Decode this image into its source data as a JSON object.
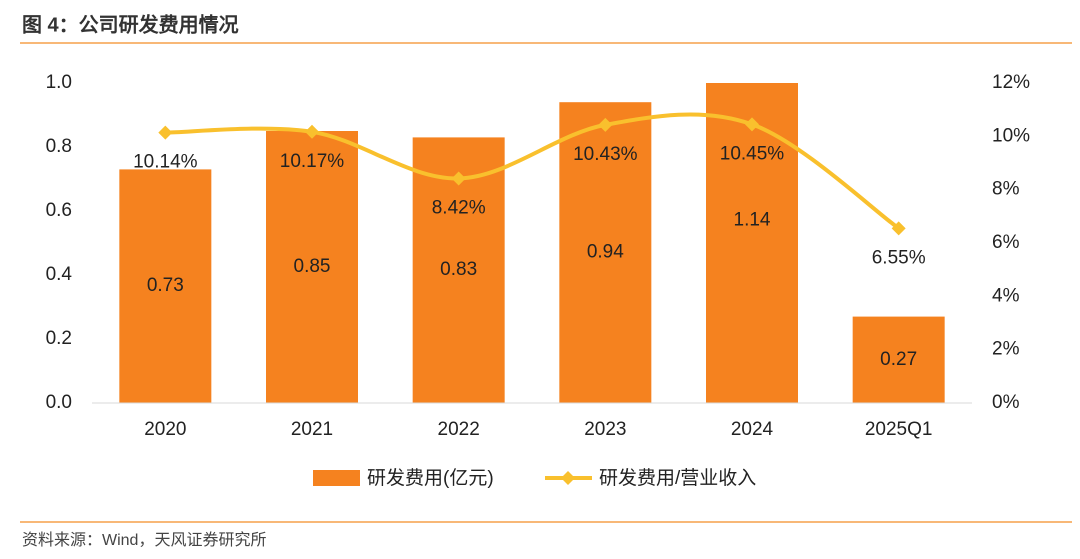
{
  "chart_data": {
    "type": "bar",
    "title": "图 4：公司研发费用情况",
    "source": "资料来源：Wind，天风证券研究所",
    "categories": [
      "2020",
      "2021",
      "2022",
      "2023",
      "2024",
      "2025Q1"
    ],
    "series": [
      {
        "name": "研发费用(亿元)",
        "type": "bar",
        "color": "#f5821f",
        "values": [
          0.73,
          0.85,
          0.83,
          0.94,
          1.14,
          0.27
        ]
      },
      {
        "name": "研发费用/营业收入",
        "type": "line",
        "axis": "y2",
        "color": "#f9c02d",
        "values": [
          10.14,
          10.17,
          8.42,
          10.43,
          10.45,
          6.55
        ],
        "value_labels": [
          "10.14%",
          "10.17%",
          "8.42%",
          "10.43%",
          "10.45%",
          "6.55%"
        ]
      }
    ],
    "ylim": [
      0,
      1
    ],
    "yticks": [
      {
        "value": 0,
        "label": "0.0"
      },
      0.2,
      0.4,
      0.6,
      0.8,
      {
        "value": 1,
        "label": "1.0"
      }
    ],
    "y2lim": [
      0,
      12
    ],
    "y2ticks": [
      {
        "value": 0,
        "label": "0%"
      },
      {
        "value": 2,
        "label": "2%"
      },
      {
        "value": 4,
        "label": "4%"
      },
      {
        "value": 6,
        "label": "6%"
      },
      {
        "value": 8,
        "label": "8%"
      },
      {
        "value": 10,
        "label": "10%"
      },
      {
        "value": 12,
        "label": "12%"
      }
    ],
    "grid": false
  }
}
